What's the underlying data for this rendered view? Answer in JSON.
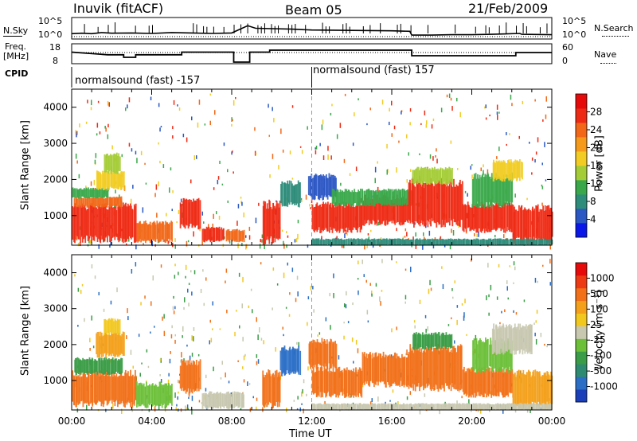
{
  "header": {
    "station": "Inuvik (fitACF)",
    "beam": "Beam 05",
    "date": "21/Feb/2009"
  },
  "noise_panel": {
    "left_label": "N.Sky",
    "right_label": "N.Search",
    "left_ticks": [
      "10^5",
      "10^0"
    ],
    "right_ticks": [
      "10^5",
      "10^0"
    ]
  },
  "freq_panel": {
    "left_label_line1": "Freq.",
    "left_label_line2": "[MHz]",
    "right_label": "Nave",
    "left_ticks": [
      "18",
      "8"
    ],
    "right_ticks": [
      "60",
      "0"
    ]
  },
  "cpid": {
    "label": "CPID",
    "segments": [
      {
        "start_hour": 0,
        "text": "normalsound (fast) -157"
      },
      {
        "start_hour": 12,
        "text": "normalsound (fast) 157"
      }
    ]
  },
  "axes": {
    "ylabel": "Slant Range [km]",
    "xlabel": "Time UT",
    "x_ticks": [
      "00:00",
      "04:00",
      "08:00",
      "12:00",
      "16:00",
      "20:00",
      "00:00"
    ],
    "y_ticks": [
      "1000",
      "2000",
      "3000",
      "4000"
    ],
    "xlim_hours": [
      0,
      24
    ],
    "ylim_km": [
      180,
      4500
    ]
  },
  "power_colorbar": {
    "label": "Power [dB]",
    "ticks": [
      "4",
      "8",
      "12",
      "16",
      "20",
      "24",
      "28"
    ],
    "colors": [
      "#0a17e8",
      "#2a57c4",
      "#2e8c7a",
      "#3aa84a",
      "#a4cc36",
      "#f2cc22",
      "#f59a1a",
      "#f26818",
      "#ee2a14",
      "#e60a0a"
    ]
  },
  "velocity_colorbar": {
    "label": "Velocity [m s⁻¹]",
    "ticks": [
      "1000",
      "500",
      "100",
      "25",
      "-25",
      "-100",
      "-500",
      "-1000"
    ],
    "colors": [
      "#1a3fb8",
      "#2a6ec6",
      "#2e8a70",
      "#3a9c46",
      "#6cc038",
      "#c8c8b0",
      "#f2c81e",
      "#f4a01a",
      "#f27018",
      "#ee3a14",
      "#e60a0a"
    ]
  },
  "chart_data": {
    "type": "heatmap",
    "x_unit": "hours UT",
    "y_unit": "km",
    "noise_trace": [
      [
        0,
        0.25
      ],
      [
        0.5,
        0.27
      ],
      [
        1,
        0.25
      ],
      [
        1.5,
        0.3
      ],
      [
        2,
        0.27
      ],
      [
        3,
        0.28
      ],
      [
        4,
        0.26
      ],
      [
        5,
        0.3
      ],
      [
        6,
        0.28
      ],
      [
        7,
        0.26
      ],
      [
        8,
        0.28
      ],
      [
        8.8,
        0.62
      ],
      [
        9.2,
        0.5
      ],
      [
        10,
        0.48
      ],
      [
        11,
        0.46
      ],
      [
        12,
        0.42
      ],
      [
        14,
        0.4
      ],
      [
        16,
        0.38
      ],
      [
        16.9,
        0.36
      ],
      [
        17,
        0.18
      ],
      [
        18,
        0.18
      ],
      [
        19,
        0.2
      ],
      [
        20,
        0.2
      ],
      [
        21,
        0.22
      ],
      [
        22.4,
        0.26
      ],
      [
        22.5,
        0.22
      ],
      [
        24,
        0.2
      ]
    ],
    "freq_steps": [
      [
        0,
        0.58
      ],
      [
        1.8,
        0.45
      ],
      [
        2.6,
        0.45
      ],
      [
        2.6,
        0.32
      ],
      [
        3.2,
        0.32
      ],
      [
        3.2,
        0.45
      ],
      [
        5.5,
        0.45
      ],
      [
        5.5,
        0.58
      ],
      [
        8.1,
        0.58
      ],
      [
        8.1,
        0.08
      ],
      [
        8.9,
        0.08
      ],
      [
        8.9,
        0.58
      ],
      [
        9.9,
        0.58
      ],
      [
        9.9,
        0.68
      ],
      [
        17.0,
        0.68
      ],
      [
        17.0,
        0.4
      ],
      [
        22.2,
        0.4
      ],
      [
        22.2,
        0.56
      ],
      [
        24,
        0.56
      ]
    ],
    "power_blobs": [
      {
        "t0": 0.0,
        "t1": 3.2,
        "r0": 350,
        "r1": 1250,
        "c": "#ee2a14"
      },
      {
        "t0": 0.1,
        "t1": 2.5,
        "r0": 1250,
        "r1": 1500,
        "c": "#f26818"
      },
      {
        "t0": 0.0,
        "t1": 1.8,
        "r0": 1500,
        "r1": 1750,
        "c": "#3aa84a"
      },
      {
        "t0": 1.2,
        "t1": 2.6,
        "r0": 1750,
        "r1": 2200,
        "c": "#f2cc22"
      },
      {
        "t0": 1.6,
        "t1": 2.4,
        "r0": 2200,
        "r1": 2700,
        "c": "#a4cc36"
      },
      {
        "t0": 3.2,
        "t1": 5.0,
        "r0": 300,
        "r1": 800,
        "c": "#f26818"
      },
      {
        "t0": 5.4,
        "t1": 6.4,
        "r0": 700,
        "r1": 1400,
        "c": "#ee2a14"
      },
      {
        "t0": 6.5,
        "t1": 7.6,
        "r0": 300,
        "r1": 650,
        "c": "#ee2a14"
      },
      {
        "t0": 7.7,
        "t1": 8.6,
        "r0": 300,
        "r1": 600,
        "c": "#f26818"
      },
      {
        "t0": 9.5,
        "t1": 10.4,
        "r0": 300,
        "r1": 1300,
        "c": "#ee2a14"
      },
      {
        "t0": 10.4,
        "t1": 11.4,
        "r0": 1300,
        "r1": 1900,
        "c": "#2e8c7a"
      },
      {
        "t0": 11.8,
        "t1": 13.2,
        "r0": 1500,
        "r1": 2100,
        "c": "#2a57c4"
      },
      {
        "t0": 12.0,
        "t1": 14.5,
        "r0": 600,
        "r1": 1300,
        "c": "#ee2a14"
      },
      {
        "t0": 14.5,
        "t1": 16.8,
        "r0": 800,
        "r1": 1500,
        "c": "#ee2a14"
      },
      {
        "t0": 13.0,
        "t1": 17.0,
        "r0": 1300,
        "r1": 1700,
        "c": "#3aa84a"
      },
      {
        "t0": 16.8,
        "t1": 19.5,
        "r0": 800,
        "r1": 1900,
        "c": "#ee2a14"
      },
      {
        "t0": 17.0,
        "t1": 19.0,
        "r0": 1900,
        "r1": 2300,
        "c": "#a4cc36"
      },
      {
        "t0": 19.5,
        "t1": 22.0,
        "r0": 600,
        "r1": 1300,
        "c": "#ee2a14"
      },
      {
        "t0": 20.0,
        "t1": 22.0,
        "r0": 1300,
        "r1": 2100,
        "c": "#3aa84a"
      },
      {
        "t0": 22.0,
        "t1": 24.0,
        "r0": 300,
        "r1": 1200,
        "c": "#ee2a14"
      },
      {
        "t0": 21.0,
        "t1": 22.5,
        "r0": 2000,
        "r1": 2500,
        "c": "#f2cc22"
      },
      {
        "t0": 12.0,
        "t1": 24.0,
        "r0": 180,
        "r1": 350,
        "c": "#2e8c7a"
      }
    ],
    "velocity_blobs": [
      {
        "t0": 0.0,
        "t1": 3.2,
        "r0": 350,
        "r1": 1200,
        "c": "#f27018"
      },
      {
        "t0": 0.1,
        "t1": 2.5,
        "r0": 1200,
        "r1": 1600,
        "c": "#3a9c46"
      },
      {
        "t0": 1.2,
        "t1": 2.6,
        "r0": 1700,
        "r1": 2300,
        "c": "#f4a01a"
      },
      {
        "t0": 1.6,
        "t1": 2.4,
        "r0": 2300,
        "r1": 2700,
        "c": "#f2c81e"
      },
      {
        "t0": 3.2,
        "t1": 5.0,
        "r0": 300,
        "r1": 900,
        "c": "#6cc038"
      },
      {
        "t0": 5.4,
        "t1": 6.4,
        "r0": 700,
        "r1": 1500,
        "c": "#f27018"
      },
      {
        "t0": 6.5,
        "t1": 8.6,
        "r0": 250,
        "r1": 650,
        "c": "#c8c8b0"
      },
      {
        "t0": 9.5,
        "t1": 10.4,
        "r0": 300,
        "r1": 1200,
        "c": "#f27018"
      },
      {
        "t0": 10.4,
        "t1": 11.4,
        "r0": 1200,
        "r1": 1900,
        "c": "#2a6ec6"
      },
      {
        "t0": 11.8,
        "t1": 13.2,
        "r0": 1400,
        "r1": 2100,
        "c": "#f27018"
      },
      {
        "t0": 12.0,
        "t1": 14.5,
        "r0": 600,
        "r1": 1300,
        "c": "#f27018"
      },
      {
        "t0": 14.5,
        "t1": 16.8,
        "r0": 900,
        "r1": 1700,
        "c": "#f27018"
      },
      {
        "t0": 16.8,
        "t1": 19.5,
        "r0": 800,
        "r1": 1900,
        "c": "#f27018"
      },
      {
        "t0": 17.0,
        "t1": 19.0,
        "r0": 1900,
        "r1": 2300,
        "c": "#3a9c46"
      },
      {
        "t0": 19.5,
        "t1": 22.0,
        "r0": 600,
        "r1": 1300,
        "c": "#f27018"
      },
      {
        "t0": 20.0,
        "t1": 22.0,
        "r0": 1300,
        "r1": 2100,
        "c": "#6cc038"
      },
      {
        "t0": 22.0,
        "t1": 24.0,
        "r0": 300,
        "r1": 1200,
        "c": "#f4a01a"
      },
      {
        "t0": 21.0,
        "t1": 23.0,
        "r0": 1800,
        "r1": 2500,
        "c": "#c8c8b0"
      },
      {
        "t0": 12.0,
        "t1": 24.0,
        "r0": 180,
        "r1": 350,
        "c": "#c8c8b0"
      }
    ]
  }
}
